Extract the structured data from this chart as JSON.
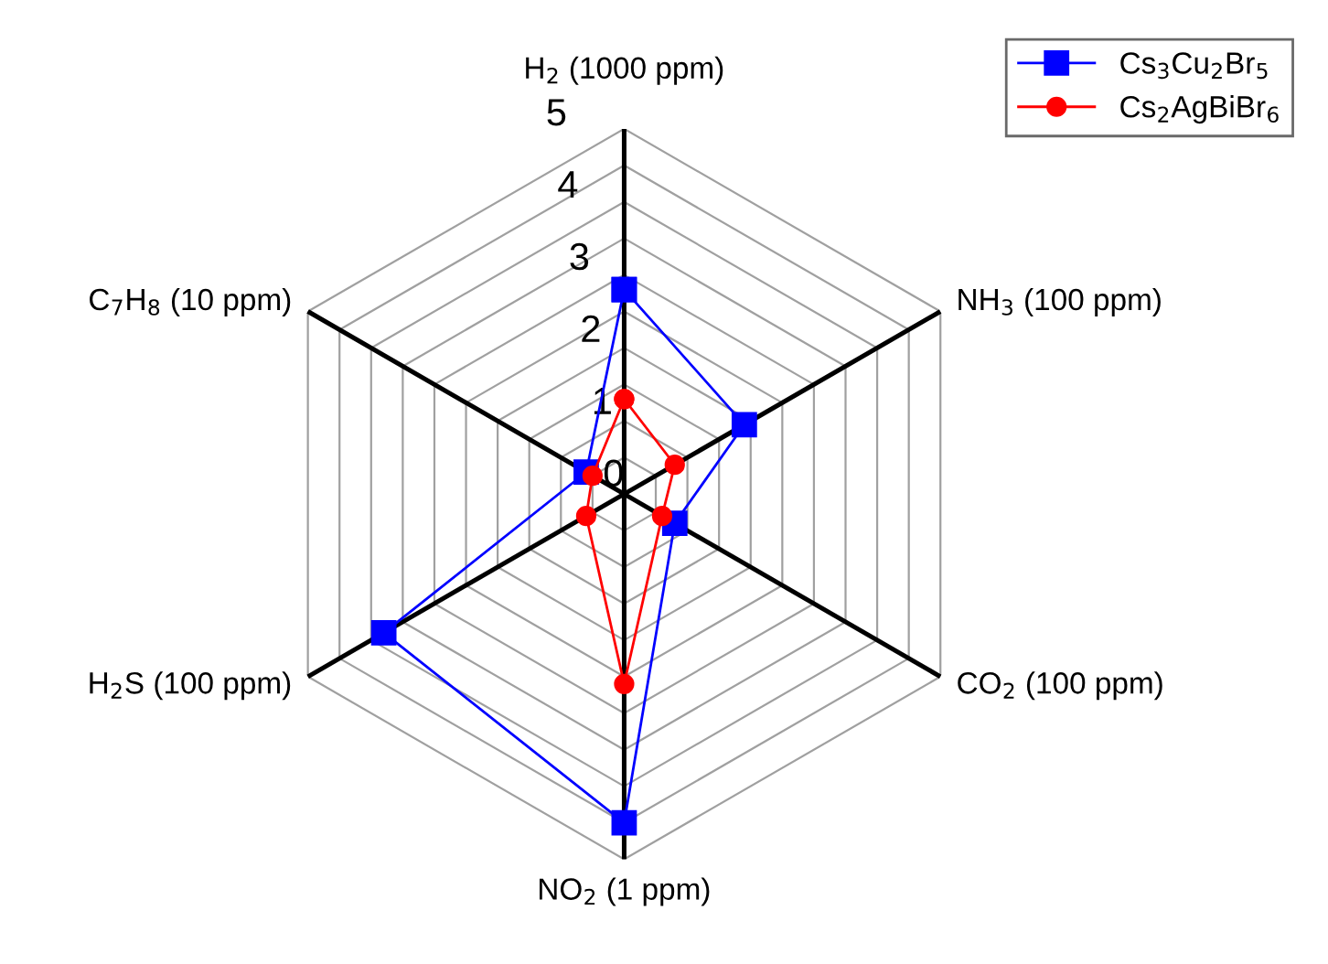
{
  "chart_data": {
    "type": "radar",
    "categories": [
      "H$_{2}$ (1000 ppm)",
      "NH$_{3}$ (100 ppm)",
      "CO$_{2}$ (100 ppm)",
      "NO$_{2}$ (1 ppm)",
      "H$_{2}$S (100 ppm)",
      "C$_{7}$H$_{8}$ (10 ppm)"
    ],
    "series": [
      {
        "name": "Cs$_{3}$Cu$_{2}$Br$_{5}$",
        "color": "#0000ff",
        "marker": "square",
        "values": [
          2.8,
          1.9,
          0.8,
          4.5,
          3.8,
          0.6
        ]
      },
      {
        "name": "Cs$_{2}$AgBiBr$_{6}$",
        "color": "#ff0000",
        "marker": "circle",
        "values": [
          1.3,
          0.8,
          0.6,
          2.6,
          0.6,
          0.5
        ]
      }
    ],
    "ylim": [
      0,
      5
    ],
    "yticks": [
      0,
      1,
      2,
      3,
      4,
      5
    ],
    "grid": true,
    "legend": "top right",
    "line_style": "solid"
  }
}
